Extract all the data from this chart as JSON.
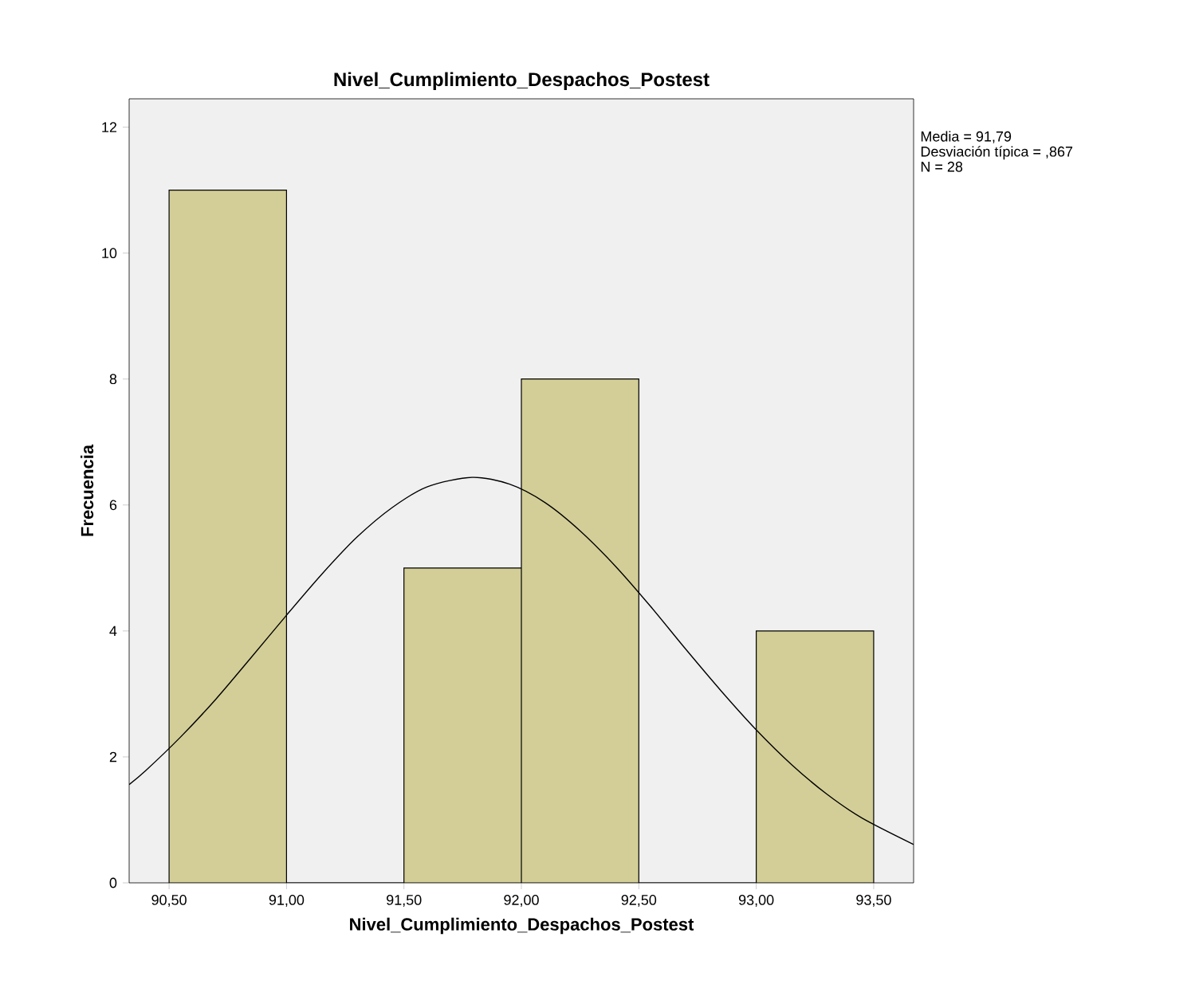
{
  "chart_data": {
    "type": "histogram",
    "title": "Nivel_Cumplimiento_Despachos_Postest",
    "xlabel": "Nivel_Cumplimiento_Despachos_Postest",
    "ylabel": "Frecuencia",
    "bins": [
      90.5,
      91.0,
      91.5,
      92.0,
      92.5,
      93.0,
      93.5
    ],
    "values": [
      11,
      0,
      5,
      8,
      0,
      4
    ],
    "color": "#d3ce97",
    "series": [
      {
        "type": "line",
        "color": "#000000",
        "x": [
          90.33,
          90.4,
          90.55,
          90.7,
          90.85,
          91.0,
          91.15,
          91.3,
          91.45,
          91.6,
          91.79,
          91.95,
          92.1,
          92.25,
          92.4,
          92.55,
          92.7,
          92.85,
          93.0,
          93.15,
          93.3,
          93.45,
          93.67
        ],
        "values": [
          1.56,
          1.78,
          2.32,
          2.92,
          3.58,
          4.25,
          4.9,
          5.49,
          5.96,
          6.29,
          6.44,
          6.33,
          6.04,
          5.59,
          5.03,
          4.39,
          3.71,
          3.05,
          2.43,
          1.88,
          1.41,
          1.03,
          0.61
        ]
      }
    ],
    "xlim": [
      90.33,
      93.67
    ],
    "ylim": [
      0,
      12.45
    ],
    "xticks": [
      {
        "value": 90.5,
        "label": "90,50"
      },
      {
        "value": 91.0,
        "label": "91,00"
      },
      {
        "value": 91.5,
        "label": "91,50"
      },
      {
        "value": 92.0,
        "label": "92,00"
      },
      {
        "value": 92.5,
        "label": "92,50"
      },
      {
        "value": 93.0,
        "label": "93,00"
      },
      {
        "value": 93.5,
        "label": "93,50"
      }
    ],
    "yticks": [
      0,
      2,
      4,
      6,
      8,
      10,
      12
    ],
    "annotations": [
      "Media = 91,79",
      "Desviación típica = ,867",
      "N = 28"
    ],
    "grid": false
  }
}
